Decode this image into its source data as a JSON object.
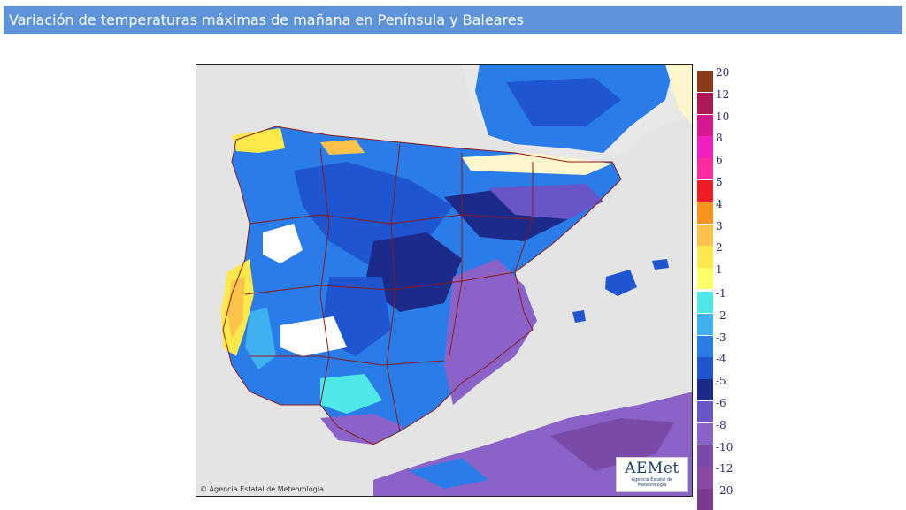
{
  "header": {
    "title": "Variación de temperaturas máximas de mañana en Península y Baleares"
  },
  "map": {
    "credit": "© Agencia Estatal de Meteorología",
    "logo": {
      "wordmark": "AEMet",
      "subtitle": "Agencia Estatal de Meteorología"
    },
    "colors": {
      "sea": "#e4e4e4",
      "border_lines": "#8b1a1a",
      "warm_coast": "#ffe84a"
    }
  },
  "legend": {
    "positive": [
      {
        "label": "20",
        "color": "#8b3a1a"
      },
      {
        "label": "12",
        "color": "#b01858"
      },
      {
        "label": "10",
        "color": "#d81890"
      },
      {
        "label": "8",
        "color": "#f020c0"
      },
      {
        "label": "6",
        "color": "#ff2ca0"
      },
      {
        "label": "5",
        "color": "#ee1c24"
      },
      {
        "label": "4",
        "color": "#f7941d"
      },
      {
        "label": "3",
        "color": "#fcc24a"
      },
      {
        "label": "2",
        "color": "#ffe84a"
      },
      {
        "label": "1",
        "color": "#ffff66"
      }
    ],
    "negative": [
      {
        "label": "-1",
        "color": "#4ee8e8"
      },
      {
        "label": "-2",
        "color": "#3fb0f0"
      },
      {
        "label": "-3",
        "color": "#2a7de8"
      },
      {
        "label": "-4",
        "color": "#1f55d0"
      },
      {
        "label": "-5",
        "color": "#1c2a8a"
      },
      {
        "label": "-6",
        "color": "#6a55c8"
      },
      {
        "label": "-8",
        "color": "#8a62c8"
      },
      {
        "label": "-10",
        "color": "#7a4aa8"
      },
      {
        "label": "-12",
        "color": "#8a4aa0"
      },
      {
        "label": "-20",
        "color": "#7a3a90"
      }
    ]
  }
}
